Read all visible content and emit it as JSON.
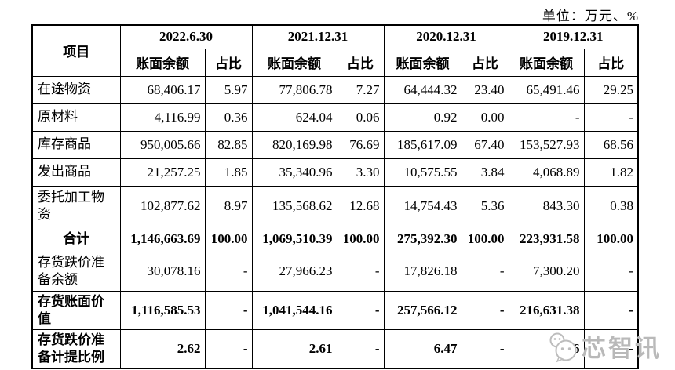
{
  "unit_label": "单位：万元、%",
  "table": {
    "item_header": "项目",
    "period_headers": [
      "2022.6.30",
      "2021.12.31",
      "2020.12.31",
      "2019.12.31"
    ],
    "sub_headers": {
      "balance": "账面余额",
      "ratio": "占比"
    },
    "rows": [
      {
        "label": "在途物资",
        "bold": false,
        "center": false,
        "values": [
          "68,406.17",
          "5.97",
          "77,806.78",
          "7.27",
          "64,444.32",
          "23.40",
          "65,491.46",
          "29.25"
        ]
      },
      {
        "label": "原材料",
        "bold": false,
        "center": false,
        "values": [
          "4,116.99",
          "0.36",
          "624.04",
          "0.06",
          "0.92",
          "0.00",
          "-",
          "-"
        ]
      },
      {
        "label": "库存商品",
        "bold": false,
        "center": false,
        "values": [
          "950,005.66",
          "82.85",
          "820,169.98",
          "76.69",
          "185,617.09",
          "67.40",
          "153,527.93",
          "68.56"
        ]
      },
      {
        "label": "发出商品",
        "bold": false,
        "center": false,
        "values": [
          "21,257.25",
          "1.85",
          "35,340.96",
          "3.30",
          "10,575.55",
          "3.84",
          "4,068.89",
          "1.82"
        ]
      },
      {
        "label": "委托加工物资",
        "bold": false,
        "center": false,
        "values": [
          "102,877.62",
          "8.97",
          "135,568.62",
          "12.68",
          "14,754.43",
          "5.36",
          "843.30",
          "0.38"
        ]
      },
      {
        "label": "合计",
        "bold": true,
        "center": true,
        "values": [
          "1,146,663.69",
          "100.00",
          "1,069,510.39",
          "100.00",
          "275,392.30",
          "100.00",
          "223,931.58",
          "100.00"
        ]
      },
      {
        "label": "存货跌价准备余额",
        "bold": false,
        "center": false,
        "values": [
          "30,078.16",
          "-",
          "27,966.23",
          "-",
          "17,826.18",
          "-",
          "7,300.20",
          "-"
        ]
      },
      {
        "label": "存货账面价值",
        "bold": true,
        "center": false,
        "values": [
          "1,116,585.53",
          "-",
          "1,041,544.16",
          "-",
          "257,566.12",
          "-",
          "216,631.38",
          "-"
        ]
      },
      {
        "label": "存货跌价准备计提比例",
        "bold": true,
        "center": false,
        "values": [
          "2.62",
          "-",
          "2.61",
          "-",
          "6.47",
          "-",
          "3.26",
          "-"
        ]
      }
    ]
  },
  "watermark": {
    "text": "芯智讯",
    "icon": "wechat-face-icon",
    "color": "#b9b9b9"
  },
  "colors": {
    "text": "#000000",
    "border": "#000000",
    "background": "#ffffff"
  }
}
